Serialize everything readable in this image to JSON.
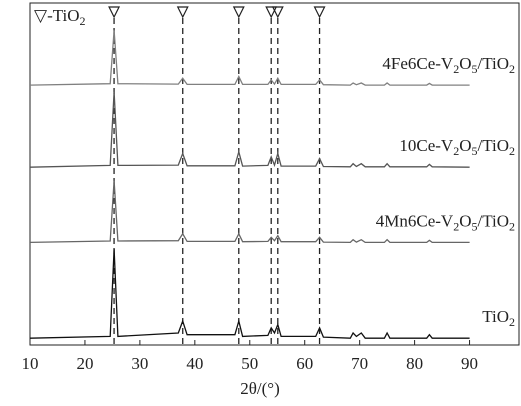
{
  "chart_data": {
    "type": "line",
    "legend_text": "▽-TiO2",
    "xlabel": "2θ/(°)",
    "xlim": [
      10,
      99
    ],
    "ylim": [
      0,
      100
    ],
    "xticks": [
      10,
      20,
      30,
      40,
      50,
      60,
      70,
      80,
      90
    ],
    "reference_peaks": [
      25.3,
      37.8,
      48,
      53.9,
      55.1,
      62.7
    ],
    "x": [
      10,
      24.6,
      25.3,
      26,
      37,
      37.8,
      38.6,
      47.3,
      48,
      48.7,
      53.3,
      53.9,
      54.5,
      55.1,
      55.7,
      62,
      62.7,
      63.4,
      68.3,
      68.8,
      69.4,
      70.3,
      71,
      74.5,
      75,
      75.5,
      82.2,
      82.7,
      83.2,
      90
    ],
    "series": [
      {
        "name": "4Fe6Ce-V2O5/TiO2",
        "color": "#808080",
        "values": [
          76,
          76.4,
          92,
          76.4,
          76.3,
          78,
          76.2,
          76.2,
          78.5,
          76.2,
          76.2,
          77.5,
          76.3,
          78,
          76.2,
          76.2,
          77.5,
          76.1,
          76,
          76.6,
          76.1,
          76.6,
          76,
          76,
          76.6,
          76,
          76,
          76.5,
          76,
          76
        ]
      },
      {
        "name": "10Ce-V2O5/TiO2",
        "color": "#555555",
        "values": [
          52,
          52.5,
          74,
          52.5,
          52.6,
          56,
          52.4,
          52.4,
          56.5,
          52.3,
          52.5,
          55,
          52.6,
          56,
          52.3,
          52.3,
          54.5,
          52.2,
          52.1,
          53,
          52.2,
          53,
          52.1,
          52.1,
          53,
          52.1,
          52.1,
          52.8,
          52.1,
          52
        ]
      },
      {
        "name": "4Mn6Ce-V2O5/TiO2",
        "color": "#666666",
        "values": [
          30,
          30.4,
          48,
          30.4,
          30.5,
          32.5,
          30.3,
          30.3,
          32.5,
          30.2,
          30.3,
          31.5,
          30.5,
          32,
          30.2,
          30.2,
          31.5,
          30.1,
          30,
          30.8,
          30.1,
          30.8,
          30,
          30,
          30.8,
          30,
          30,
          30.6,
          30,
          30
        ]
      },
      {
        "name": "TiO2",
        "color": "#111111",
        "values": [
          2,
          2.5,
          28,
          2.5,
          3.5,
          7,
          3,
          3,
          7,
          2.5,
          2.8,
          5,
          3.5,
          6,
          2.5,
          2.5,
          5,
          2.3,
          2,
          3.5,
          2.5,
          3.5,
          2,
          2,
          3.5,
          2,
          2,
          3,
          2,
          2
        ]
      }
    ]
  }
}
